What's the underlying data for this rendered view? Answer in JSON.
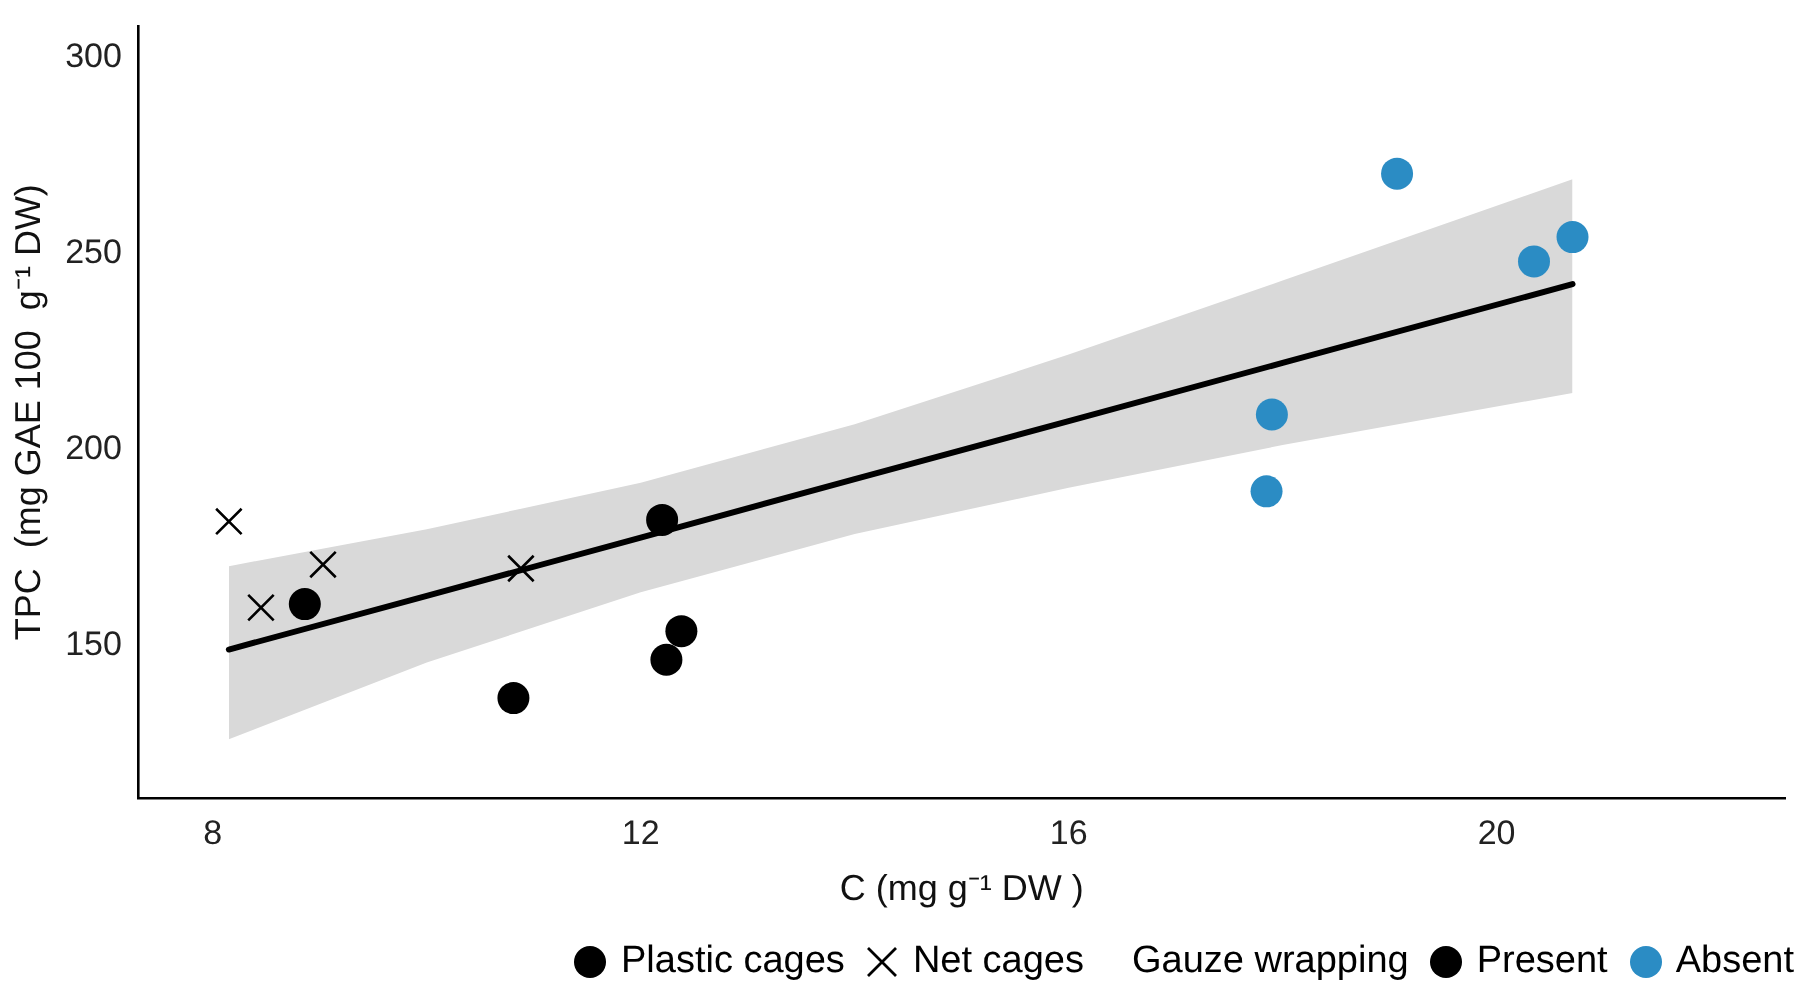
{
  "chart_data": {
    "type": "scatter",
    "xlabel": "C (mg g⁻¹ DW )",
    "ylabel": "TPC  (mg GAE 100  g⁻¹ DW)",
    "xlim": [
      7.3,
      22.7
    ],
    "xticks": [
      8,
      12,
      16,
      20
    ],
    "ylim": [
      111,
      308
    ],
    "yticks": [
      150,
      200,
      250,
      300
    ],
    "grid": false,
    "legend": "bottom",
    "legend_title": "Gauze wrapping",
    "series": [
      {
        "name": "Plastic cages",
        "marker": "circle",
        "color": "#000000"
      },
      {
        "name": "Net cages",
        "marker": "cross",
        "color": "#000000",
        "x": [
          8.15,
          8.45,
          9.03,
          10.88
        ],
        "values": [
          181.6,
          159.6,
          170.6,
          169.6
        ]
      },
      {
        "name": "Present",
        "color": "#000000",
        "x": [
          8.86,
          10.81,
          12.2,
          12.24,
          12.38
        ],
        "values": [
          160.5,
          136.5,
          182,
          146.3,
          153.6
        ]
      },
      {
        "name": "Absent",
        "color": "#2b8cc4",
        "x": [
          17.85,
          17.9,
          19.07,
          20.35,
          20.71
        ],
        "values": [
          189.3,
          208.9,
          270.4,
          248,
          254.2
        ]
      },
      {
        "type": "line",
        "marker": "none",
        "color": "#000000",
        "x": [
          8.15,
          10,
          12,
          14,
          16,
          18,
          20.71
        ],
        "values": [
          148.9,
          162.6,
          177.5,
          192.4,
          207.2,
          222.1,
          242.2
        ],
        "lower": [
          126,
          145.6,
          163.5,
          178.4,
          190.2,
          201.1,
          214.4
        ],
        "upper": [
          170.2,
          179.6,
          191.5,
          206.4,
          224.2,
          243.1,
          269
        ]
      }
    ]
  }
}
